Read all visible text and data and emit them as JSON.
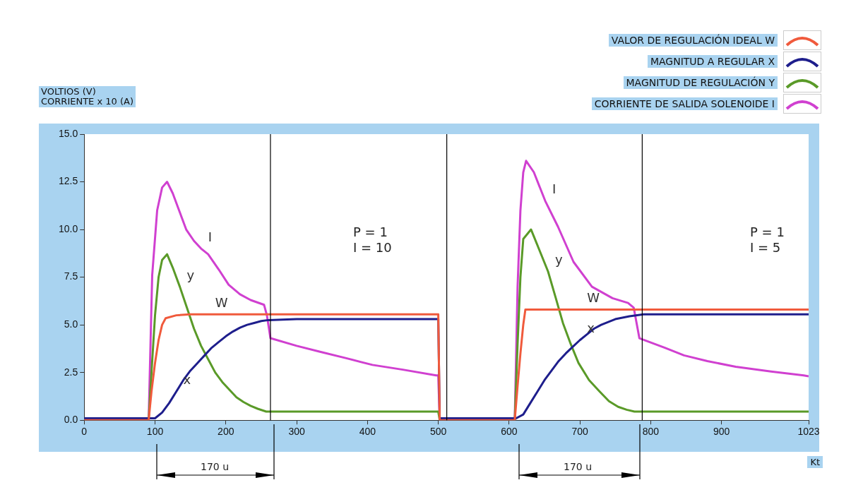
{
  "chart_data": {
    "type": "line",
    "ylabel": "VOLTIOS (V)\nCORRIENTE x 10 (A)",
    "xlabel": "Kt",
    "legend": "top right",
    "grid": false,
    "xlim": [
      0,
      1023
    ],
    "ylim": [
      0,
      15
    ],
    "xticks": [
      0,
      100,
      200,
      300,
      400,
      500,
      600,
      700,
      800,
      900,
      1023
    ],
    "yticks": [
      {
        "value": 0,
        "label": "0.0"
      },
      {
        "value": 2.5,
        "label": "2.5"
      },
      {
        "value": 5,
        "label": "5.0"
      },
      {
        "value": 7.5,
        "label": "7.5"
      },
      {
        "value": 10,
        "label": "10.0"
      },
      {
        "value": 12.5,
        "label": "12.5"
      },
      {
        "value": 15,
        "label": "15.0"
      }
    ],
    "series": [
      {
        "name": "VALOR DE REGULACIÓN IDEAL W",
        "color": "#f05a3c",
        "x": [
          0,
          91,
          95,
          100,
          105,
          110,
          115,
          130,
          150,
          500,
          502,
          608,
          612,
          616,
          620,
          623,
          700,
          1023
        ],
        "values": [
          0,
          0,
          1.5,
          3.0,
          4.2,
          5.0,
          5.35,
          5.5,
          5.55,
          5.55,
          0,
          0,
          1.8,
          3.5,
          5.0,
          5.8,
          5.8,
          5.8
        ]
      },
      {
        "name": "MAGNITUD A REGULAR X",
        "color": "#1e1e8c",
        "x": [
          0,
          95,
          100,
          110,
          120,
          130,
          140,
          150,
          160,
          170,
          180,
          190,
          200,
          210,
          220,
          230,
          240,
          250,
          260,
          300,
          500,
          502,
          610,
          620,
          630,
          640,
          650,
          660,
          670,
          680,
          690,
          700,
          710,
          720,
          730,
          750,
          770,
          790,
          1023
        ],
        "values": [
          0.1,
          0.1,
          0.1,
          0.4,
          0.9,
          1.5,
          2.1,
          2.6,
          3.0,
          3.4,
          3.8,
          4.1,
          4.4,
          4.65,
          4.85,
          5.0,
          5.1,
          5.2,
          5.25,
          5.3,
          5.3,
          0.1,
          0.1,
          0.3,
          0.9,
          1.5,
          2.1,
          2.6,
          3.1,
          3.5,
          3.85,
          4.2,
          4.5,
          4.8,
          5.0,
          5.3,
          5.45,
          5.55,
          5.55
        ]
      },
      {
        "name": "MAGNITUD DE REGULACIÓN Y",
        "color": "#5a9a28",
        "x": [
          0,
          91,
          95,
          100,
          105,
          110,
          117,
          125,
          135,
          145,
          155,
          165,
          175,
          185,
          195,
          205,
          215,
          225,
          235,
          245,
          257,
          500,
          502,
          608,
          612,
          616,
          620,
          631,
          643,
          655,
          666,
          676,
          687,
          698,
          713,
          728,
          741,
          754,
          766,
          777,
          1023
        ],
        "values": [
          0,
          0,
          2.5,
          5.5,
          7.5,
          8.4,
          8.7,
          8.0,
          7.0,
          5.9,
          4.8,
          3.9,
          3.2,
          2.5,
          2.0,
          1.6,
          1.2,
          0.95,
          0.75,
          0.6,
          0.45,
          0.45,
          0,
          0,
          4.0,
          7.5,
          9.5,
          10.0,
          8.9,
          7.8,
          6.4,
          5.1,
          4.0,
          3.0,
          2.1,
          1.5,
          1.0,
          0.7,
          0.55,
          0.45,
          0.45
        ]
      },
      {
        "name": "CORRIENTE DE SALIDA SOLENOIDE I",
        "color": "#d040d0",
        "x": [
          0,
          91,
          96,
          103,
          110,
          117,
          125,
          135,
          144,
          155,
          165,
          175,
          190,
          204,
          220,
          235,
          254,
          258,
          263,
          300,
          332,
          370,
          407,
          450,
          497,
          500,
          502,
          608,
          612,
          616,
          620,
          624,
          635,
          651,
          669,
          691,
          717,
          746,
          768,
          776,
          784,
          820,
          847,
          880,
          920,
          970,
          1016,
          1023
        ],
        "values": [
          0,
          0,
          7.6,
          11.0,
          12.2,
          12.5,
          11.9,
          10.9,
          10.0,
          9.4,
          9.0,
          8.7,
          7.9,
          7.1,
          6.6,
          6.3,
          6.05,
          5.5,
          4.3,
          3.9,
          3.6,
          3.25,
          2.9,
          2.65,
          2.35,
          2.35,
          0,
          0,
          7.0,
          11.0,
          13.0,
          13.6,
          13.0,
          11.5,
          10.15,
          8.3,
          7.0,
          6.4,
          6.15,
          5.9,
          4.3,
          3.8,
          3.4,
          3.1,
          2.8,
          2.55,
          2.35,
          2.3
        ]
      }
    ],
    "ref_lines": [
      {
        "axis": "x",
        "value": 263,
        "color": "#000000"
      },
      {
        "axis": "x",
        "value": 512,
        "color": "#000000"
      },
      {
        "axis": "x",
        "value": 788,
        "color": "#000000"
      }
    ],
    "annotations": [
      {
        "text": "I",
        "x": 165,
        "y": 9.0
      },
      {
        "text": "y",
        "x": 135,
        "y": 7.0
      },
      {
        "text": "W",
        "x": 175,
        "y": 5.55
      },
      {
        "text": "x",
        "x": 130,
        "y": 1.5
      },
      {
        "text": "I",
        "x": 651,
        "y": 11.5
      },
      {
        "text": "y",
        "x": 655,
        "y": 7.8
      },
      {
        "text": "W",
        "x": 700,
        "y": 5.8
      },
      {
        "text": "x",
        "x": 700,
        "y": 4.2
      },
      "P = 1\nI = 10",
      "P = 1\nI = 5",
      "170 u",
      "170 u"
    ]
  }
}
